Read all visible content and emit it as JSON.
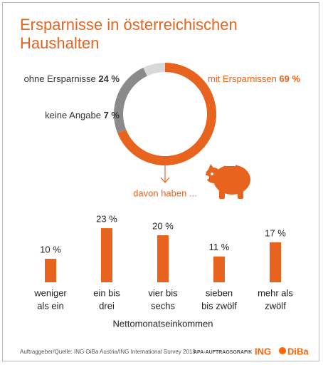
{
  "header": {
    "title": "Ersparnisse in österreichischen Haushalten"
  },
  "chart_data": [
    {
      "type": "donut",
      "categories": [
        "mit Ersparnissen",
        "ohne Ersparnisse",
        "keine Angabe"
      ],
      "values": [
        69,
        24,
        7
      ],
      "value_labels": [
        "69 %",
        "24 %",
        "7 %"
      ],
      "colors": [
        "#e8641e",
        "#8a8a8a",
        "#d9d9d9"
      ]
    },
    {
      "type": "bar",
      "categories": [
        [
          "weniger",
          "als ein"
        ],
        [
          "ein bis",
          "drei"
        ],
        [
          "vier bis",
          "sechs"
        ],
        [
          "sieben",
          "bis zwölf"
        ],
        [
          "mehr als",
          "zwölf"
        ]
      ],
      "values": [
        10,
        23,
        20,
        11,
        17
      ],
      "value_labels": [
        "10 %",
        "23 %",
        "20 %",
        "11 %",
        "17 %"
      ],
      "color": "#e8641e",
      "x_label": "Nettomonatseinkommen"
    }
  ],
  "annotation": "davon haben ...",
  "footer": {
    "source": "Auftraggeber/Quelle: ING-DiBa Austria/ING International Survey 2018",
    "credit": "APA-AUFTRAGSGRAFIK",
    "logo_left": "ING",
    "logo_right": "DiBa"
  }
}
